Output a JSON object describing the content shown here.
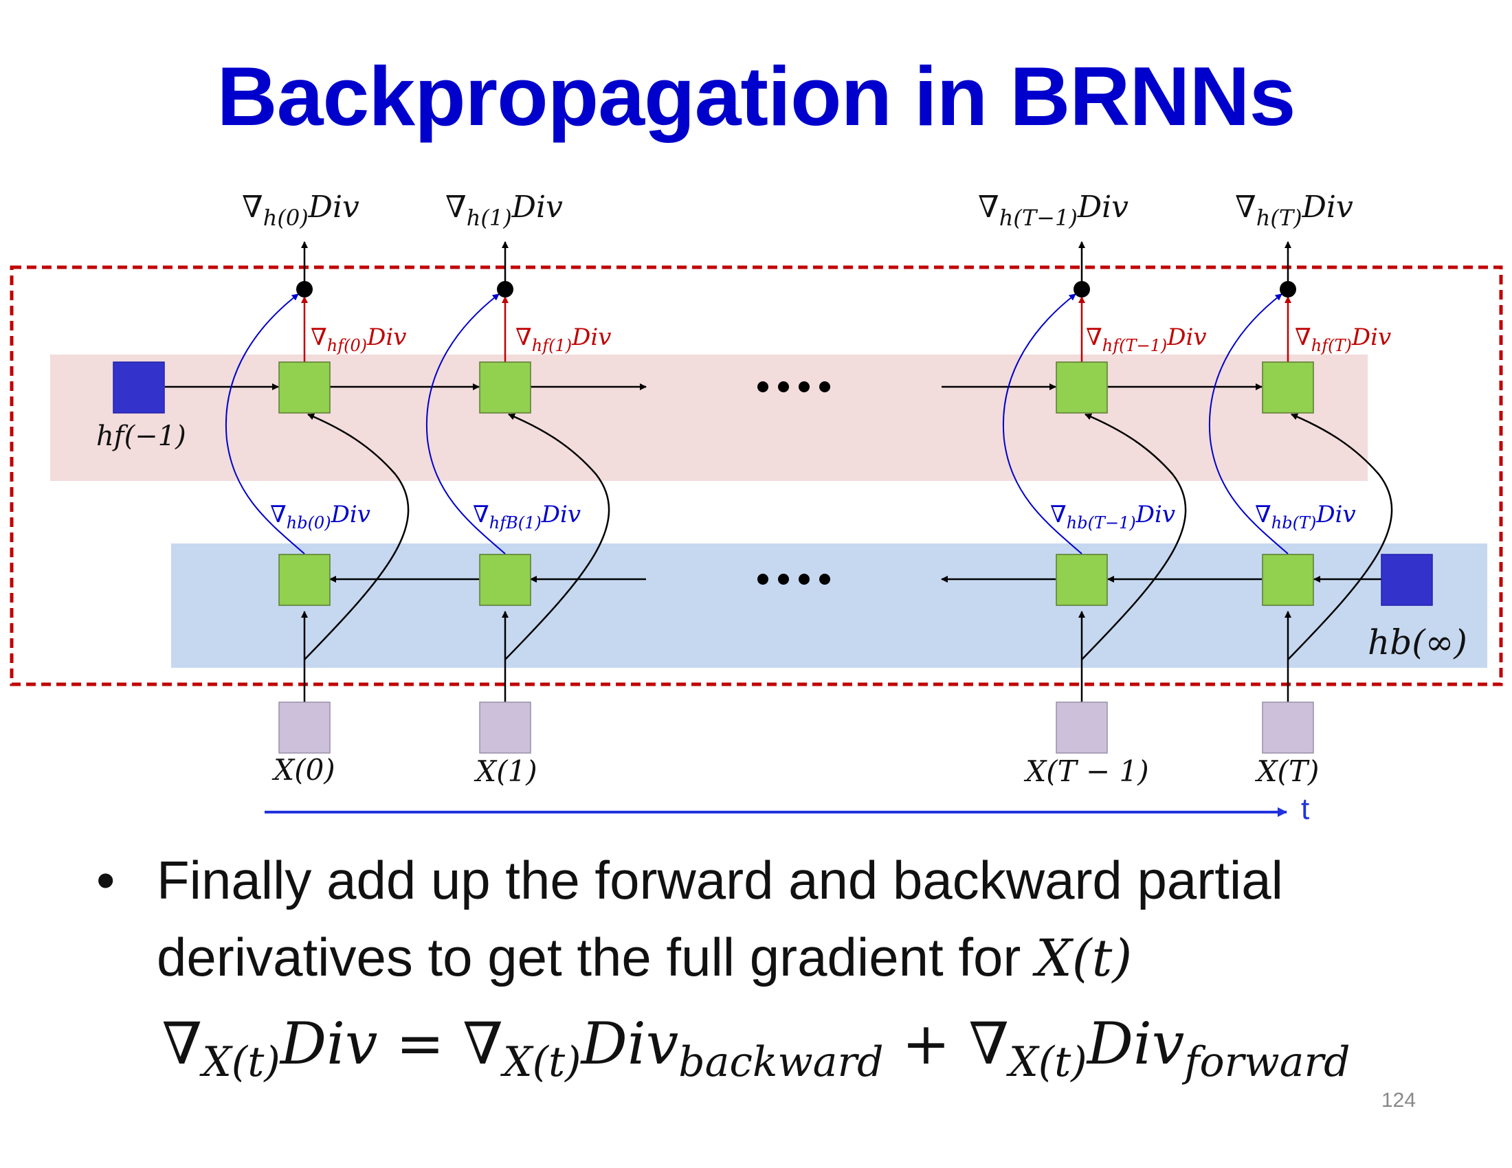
{
  "title": "Backpropagation in BRNNs",
  "diagram": {
    "top_grad_labels": [
      "∇h(0)Div",
      "∇h(1)Div",
      "∇h(T−1)Div",
      "∇h(T)Div"
    ],
    "top_grad_subs": [
      "h(0)",
      "h(1)",
      "h(T−1)",
      "h(T)"
    ],
    "forward_grad_subs": [
      "hf(0)",
      "hf(1)",
      "hf(T−1)",
      "hf(T)"
    ],
    "backward_grad_subs": [
      "hb(0)",
      "hfB(1)",
      "hb(T−1)",
      "hb(T)"
    ],
    "grad_symbol": "∇",
    "div_text": "Div",
    "hf_init_label": "hf(−1)",
    "hb_init_label": "hb(∞)",
    "input_labels": [
      "X(0)",
      "X(1)",
      "X(T − 1)",
      "X(T)"
    ],
    "ellipsis": "● ● ● ●",
    "time_label": "t",
    "colors": {
      "forward_band": "#f2dcdc",
      "backward_band": "#c6d8f0",
      "cell": "#92d050",
      "init_cell": "#3333cc",
      "input_cell": "#ccc0da",
      "dashed_box": "#c00000",
      "forward_grad": "#c00000",
      "backward_grad": "#0000cc",
      "time_arrow": "#2233dd"
    }
  },
  "bullet": {
    "symbol": "•",
    "text_line1": "Finally add up the forward and backward partial",
    "text_line2": "derivatives to get the full gradient for",
    "math": "X(t)"
  },
  "equation": {
    "lhs": "∇",
    "lhs_sub": "X(t)",
    "lhs_div": "Div = ∇",
    "t1_sub": "X(t)",
    "t1_div": "Div",
    "t1_sub2": "backward",
    "plus": " + ∇",
    "t2_sub": "X(t)",
    "t2_div": "Div",
    "t2_sub2": "forward"
  },
  "page_number": "124"
}
